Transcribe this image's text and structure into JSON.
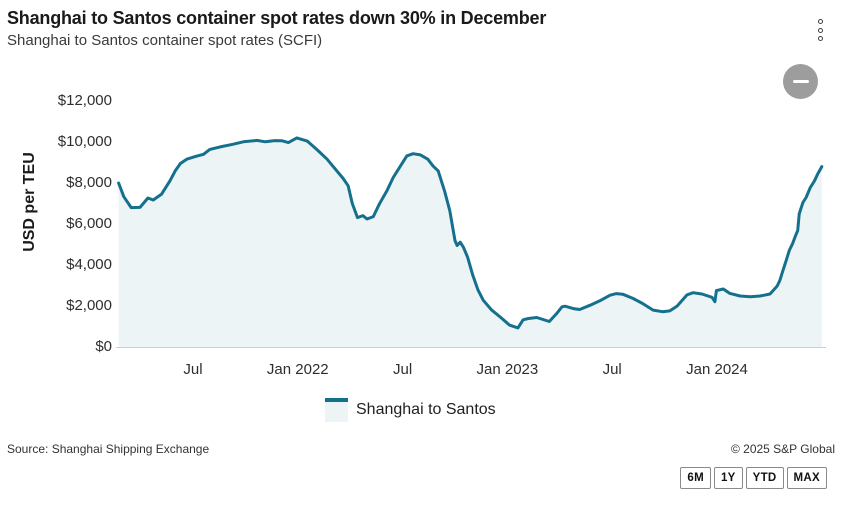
{
  "header": {
    "title": "Shanghai to Santos container spot rates down 30% in December",
    "subtitle": "Shanghai to Santos container spot rates (SCFI)"
  },
  "icons": {
    "menu": "kebab-menu-icon",
    "collapse": "minus-icon"
  },
  "legend": {
    "label": "Shanghai to Santos"
  },
  "footer": {
    "source": "Source: Shanghai Shipping Exchange",
    "copyright": "© 2025 S&P Global"
  },
  "range_buttons": [
    "6M",
    "1Y",
    "YTD",
    "MAX"
  ],
  "chart_data": {
    "type": "area",
    "title": "Shanghai to Santos container spot rates down 30% in December",
    "subtitle": "Shanghai to Santos container spot rates (SCFI)",
    "xlabel": "",
    "ylabel": "USD per TEU",
    "legend_position": "bottom",
    "grid": false,
    "line_color": "#15708e",
    "fill_color": "#edf4f6",
    "baseline_color": "#cfcfcf",
    "ylim": [
      0,
      12000
    ],
    "xlim": [
      2021.13,
      2024.52
    ],
    "y_ticks": [
      {
        "label": "$12,000",
        "v": 12000
      },
      {
        "label": "$10,000",
        "v": 10000
      },
      {
        "label": "$8,000",
        "v": 8000
      },
      {
        "label": "$6,000",
        "v": 6000
      },
      {
        "label": "$4,000",
        "v": 4000
      },
      {
        "label": "$2,000",
        "v": 2000
      },
      {
        "label": "$0",
        "v": 0
      }
    ],
    "x_ticks": [
      {
        "label": "Jul",
        "t": 2021.5
      },
      {
        "label": "Jan 2022",
        "t": 2022.0
      },
      {
        "label": "Jul",
        "t": 2022.5
      },
      {
        "label": "Jan 2023",
        "t": 2023.0
      },
      {
        "label": "Jul",
        "t": 2023.5
      },
      {
        "label": "Jan 2024",
        "t": 2024.0
      }
    ],
    "series": [
      {
        "name": "Shanghai to Santos",
        "unit": "USD per TEU",
        "points": [
          [
            2021.145,
            8000
          ],
          [
            2021.17,
            7330
          ],
          [
            2021.205,
            6800
          ],
          [
            2021.247,
            6810
          ],
          [
            2021.285,
            7270
          ],
          [
            2021.31,
            7170
          ],
          [
            2021.35,
            7460
          ],
          [
            2021.39,
            8100
          ],
          [
            2021.415,
            8590
          ],
          [
            2021.44,
            8950
          ],
          [
            2021.47,
            9160
          ],
          [
            2021.51,
            9290
          ],
          [
            2021.55,
            9400
          ],
          [
            2021.58,
            9640
          ],
          [
            2021.63,
            9760
          ],
          [
            2021.69,
            9890
          ],
          [
            2021.74,
            10010
          ],
          [
            2021.805,
            10080
          ],
          [
            2021.845,
            10010
          ],
          [
            2021.89,
            10070
          ],
          [
            2021.925,
            10060
          ],
          [
            2021.955,
            9970
          ],
          [
            2021.995,
            10200
          ],
          [
            2022.045,
            10050
          ],
          [
            2022.09,
            9640
          ],
          [
            2022.14,
            9160
          ],
          [
            2022.17,
            8790
          ],
          [
            2022.215,
            8240
          ],
          [
            2022.24,
            7870
          ],
          [
            2022.26,
            7000
          ],
          [
            2022.285,
            6310
          ],
          [
            2022.31,
            6410
          ],
          [
            2022.33,
            6245
          ],
          [
            2022.36,
            6360
          ],
          [
            2022.39,
            6990
          ],
          [
            2022.425,
            7620
          ],
          [
            2022.455,
            8270
          ],
          [
            2022.49,
            8835
          ],
          [
            2022.52,
            9320
          ],
          [
            2022.55,
            9430
          ],
          [
            2022.585,
            9370
          ],
          [
            2022.62,
            9160
          ],
          [
            2022.645,
            8835
          ],
          [
            2022.67,
            8590
          ],
          [
            2022.7,
            7620
          ],
          [
            2022.725,
            6650
          ],
          [
            2022.75,
            5190
          ],
          [
            2022.76,
            4950
          ],
          [
            2022.775,
            5110
          ],
          [
            2022.79,
            4870
          ],
          [
            2022.81,
            4380
          ],
          [
            2022.835,
            3500
          ],
          [
            2022.86,
            2770
          ],
          [
            2022.885,
            2280
          ],
          [
            2022.925,
            1800
          ],
          [
            2022.965,
            1470
          ],
          [
            2023.01,
            1070
          ],
          [
            2023.05,
            930
          ],
          [
            2023.075,
            1325
          ],
          [
            2023.1,
            1390
          ],
          [
            2023.14,
            1440
          ],
          [
            2023.17,
            1340
          ],
          [
            2023.2,
            1245
          ],
          [
            2023.235,
            1635
          ],
          [
            2023.26,
            1955
          ],
          [
            2023.275,
            1990
          ],
          [
            2023.315,
            1875
          ],
          [
            2023.345,
            1830
          ],
          [
            2023.395,
            2040
          ],
          [
            2023.44,
            2250
          ],
          [
            2023.49,
            2525
          ],
          [
            2023.52,
            2605
          ],
          [
            2023.55,
            2575
          ],
          [
            2023.6,
            2365
          ],
          [
            2023.645,
            2120
          ],
          [
            2023.695,
            1800
          ],
          [
            2023.74,
            1720
          ],
          [
            2023.775,
            1760
          ],
          [
            2023.81,
            2000
          ],
          [
            2023.857,
            2540
          ],
          [
            2023.886,
            2650
          ],
          [
            2023.928,
            2585
          ],
          [
            2023.976,
            2425
          ],
          [
            2023.99,
            2210
          ],
          [
            2023.997,
            2750
          ],
          [
            2024.03,
            2830
          ],
          [
            2024.06,
            2620
          ],
          [
            2024.11,
            2490
          ],
          [
            2024.16,
            2455
          ],
          [
            2024.205,
            2490
          ],
          [
            2024.253,
            2585
          ],
          [
            2024.287,
            2975
          ],
          [
            2024.3,
            3255
          ],
          [
            2024.315,
            3740
          ],
          [
            2024.33,
            4225
          ],
          [
            2024.345,
            4710
          ],
          [
            2024.36,
            5035
          ],
          [
            2024.375,
            5440
          ],
          [
            2024.385,
            5680
          ],
          [
            2024.392,
            6490
          ],
          [
            2024.41,
            7050
          ],
          [
            2024.425,
            7295
          ],
          [
            2024.445,
            7780
          ],
          [
            2024.465,
            8105
          ],
          [
            2024.48,
            8430
          ],
          [
            2024.5,
            8800
          ]
        ]
      }
    ]
  }
}
